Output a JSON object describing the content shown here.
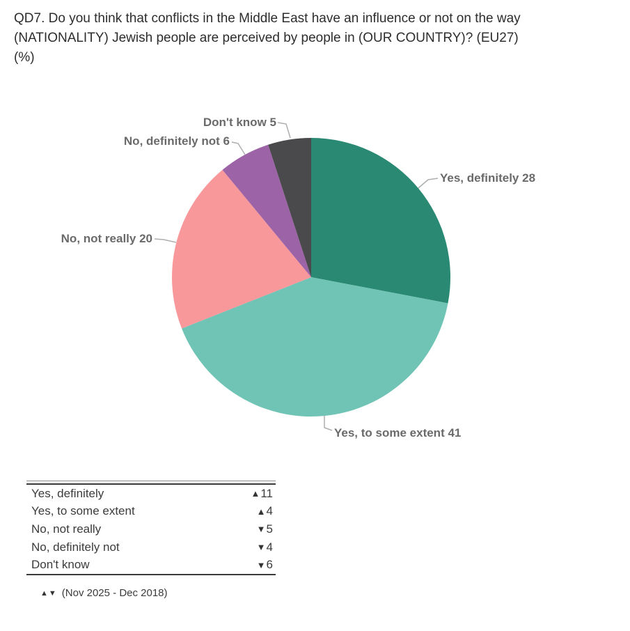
{
  "title": "QD7. Do you think that conflicts in the Middle East have an influence or not on the way (NATIONALITY) Jewish people are perceived by people in (OUR COUNTRY)? (EU27) (%)",
  "chart_data": {
    "type": "pie",
    "title": "QD7. Do you think that conflicts in the Middle East have an influence or not on the way (NATIONALITY) Jewish people are perceived by people in (OUR COUNTRY)? (EU27) (%)",
    "start_angle_deg": 0,
    "direction": "clockwise",
    "slices": [
      {
        "label": "Yes, definitely",
        "value": 28,
        "color": "#2A8973"
      },
      {
        "label": "Yes, to some extent",
        "value": 41,
        "color": "#70C4B5"
      },
      {
        "label": "No, not really",
        "value": 20,
        "color": "#F8989A"
      },
      {
        "label": "No, definitely not",
        "value": 6,
        "color": "#9C64A6"
      },
      {
        "label": "Don't know",
        "value": 5,
        "color": "#4A4A4C"
      }
    ]
  },
  "change_table": {
    "rows": [
      {
        "label": "Yes, definitely",
        "direction": "up",
        "symbol": "▲",
        "value": 11
      },
      {
        "label": "Yes, to some extent",
        "direction": "up",
        "symbol": "▲",
        "value": 4
      },
      {
        "label": "No, not really",
        "direction": "down",
        "symbol": "▼",
        "value": 5
      },
      {
        "label": "No, definitely not",
        "direction": "down",
        "symbol": "▼",
        "value": 4
      },
      {
        "label": "Don't know",
        "direction": "down",
        "symbol": "▼",
        "value": 6
      }
    ]
  },
  "footnote": {
    "symbols": "▲▼",
    "text": "(Nov 2025 - Dec 2018)"
  },
  "colors": {
    "label_text": "#6A6A6A",
    "title_text": "#2D2D2D",
    "table_text": "#3B3B3B",
    "leader_line": "#AEAEAE",
    "background": "#FFFFFF"
  }
}
